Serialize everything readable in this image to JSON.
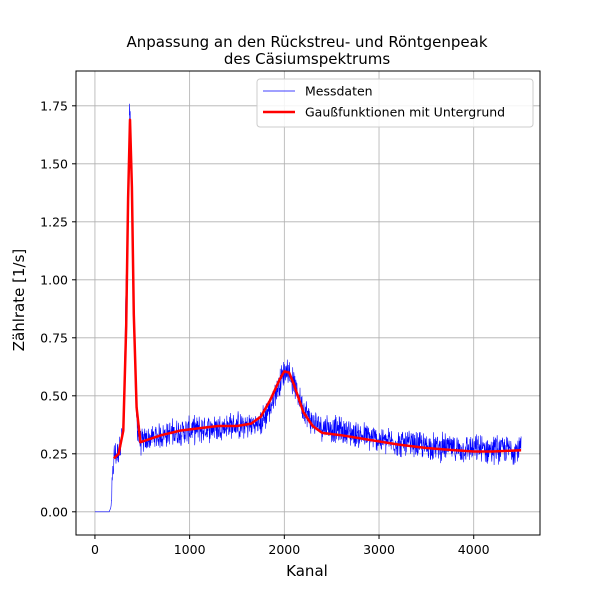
{
  "chart_data": {
    "type": "line",
    "title": [
      "Anpassung an den Rückstreu- und Röntgenpeak",
      "des Cäsiumspektrums"
    ],
    "xlabel": "Kanal",
    "ylabel": "Zählrate [1/s]",
    "xlim": [
      -200,
      4700
    ],
    "ylim": [
      -0.1,
      1.9
    ],
    "xticks": [
      0,
      1000,
      2000,
      3000,
      4000
    ],
    "xtick_labels": [
      "0",
      "1000",
      "2000",
      "3000",
      "4000"
    ],
    "yticks": [
      0.0,
      0.25,
      0.5,
      0.75,
      1.0,
      1.25,
      1.5,
      1.75
    ],
    "ytick_labels": [
      "0.00",
      "0.25",
      "0.50",
      "0.75",
      "1.00",
      "1.25",
      "1.50",
      "1.75"
    ],
    "grid": true,
    "legend_position": "top-right",
    "series": [
      {
        "name": "Messdaten",
        "color": "#0000ff",
        "style": "thin-noisy-line",
        "x": [
          0,
          100,
          150,
          170,
          200,
          250,
          300,
          340,
          370,
          400,
          430,
          460,
          500,
          600,
          800,
          1000,
          1200,
          1400,
          1600,
          1750,
          1850,
          1950,
          2030,
          2100,
          2200,
          2300,
          2500,
          2800,
          3000,
          3300,
          3600,
          3900,
          4200,
          4500
        ],
        "y": [
          0.0,
          0.0,
          0.0,
          0.02,
          0.24,
          0.26,
          0.36,
          1.2,
          1.7,
          1.1,
          0.45,
          0.32,
          0.3,
          0.32,
          0.34,
          0.35,
          0.36,
          0.37,
          0.37,
          0.38,
          0.45,
          0.56,
          0.62,
          0.55,
          0.45,
          0.38,
          0.36,
          0.33,
          0.31,
          0.29,
          0.28,
          0.27,
          0.27,
          0.27
        ],
        "noise_amplitude": 0.05
      },
      {
        "name": "Gaußfunktionen mit Untergrund",
        "color": "#ff0000",
        "style": "thick-line",
        "x": [
          200,
          250,
          300,
          330,
          350,
          370,
          390,
          410,
          440,
          480,
          550,
          700,
          900,
          1100,
          1300,
          1500,
          1650,
          1750,
          1850,
          1950,
          2000,
          2050,
          2100,
          2200,
          2300,
          2400,
          2600,
          2900,
          3200,
          3500,
          3800,
          4000,
          4200,
          4500
        ],
        "y": [
          0.23,
          0.25,
          0.35,
          0.8,
          1.35,
          1.69,
          1.4,
          0.85,
          0.45,
          0.3,
          0.31,
          0.33,
          0.35,
          0.36,
          0.37,
          0.37,
          0.38,
          0.41,
          0.48,
          0.57,
          0.605,
          0.6,
          0.55,
          0.43,
          0.37,
          0.34,
          0.33,
          0.31,
          0.29,
          0.275,
          0.265,
          0.26,
          0.26,
          0.265
        ]
      }
    ]
  }
}
